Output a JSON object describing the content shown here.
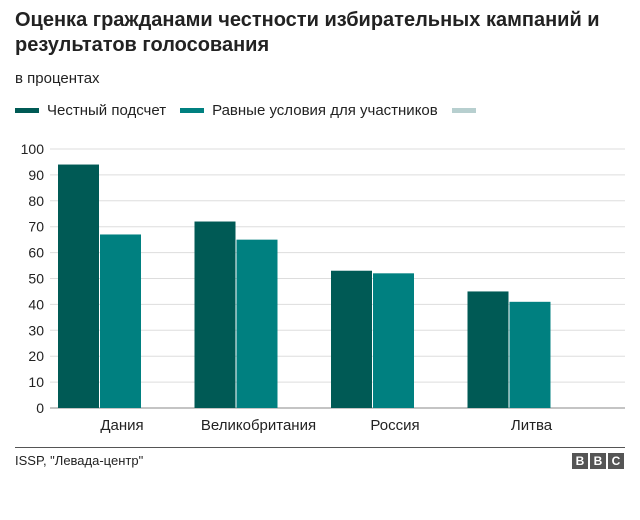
{
  "chart_data": {
    "type": "bar",
    "title": "Оценка гражданами честности избирательных кампаний и результатов голосования",
    "subtitle": "в процентах",
    "categories": [
      "Дания",
      "Великобритания",
      "Россия",
      "Литва"
    ],
    "series": [
      {
        "name": "Честный подсчет",
        "color": "#005a55",
        "values": [
          94,
          72,
          53,
          45
        ]
      },
      {
        "name": "Равные условия для участников",
        "color": "#008080",
        "values": [
          67,
          65,
          52,
          41
        ]
      },
      {
        "name": "",
        "color": "#b7cfcf",
        "values": [
          null,
          null,
          null,
          null
        ]
      }
    ],
    "yticks": [
      0,
      10,
      20,
      30,
      40,
      50,
      60,
      70,
      80,
      90,
      100
    ],
    "ylim": [
      0,
      100
    ],
    "xlabel": "",
    "ylabel": "",
    "grid": true,
    "legend": "top"
  },
  "footer": {
    "source": "ISSP, \"Левада-центр\"",
    "logo": [
      "B",
      "B",
      "C"
    ]
  }
}
